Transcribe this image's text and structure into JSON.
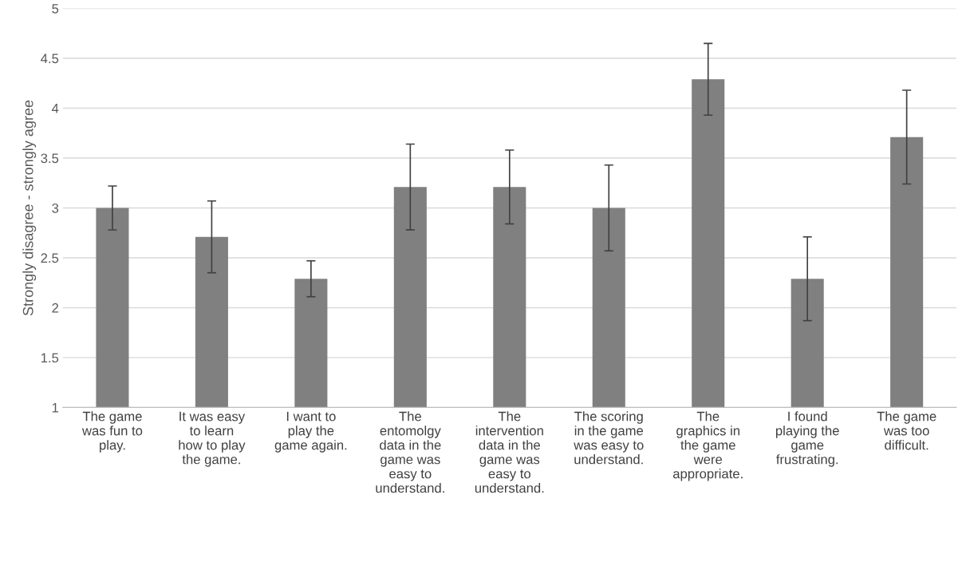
{
  "chart_data": {
    "type": "bar",
    "ylabel": "Strongly disagree - strongly agree",
    "categories": [
      "The game\nwas fun to\nplay.",
      "It was easy\nto learn\nhow to play\nthe game.",
      "I want to\nplay the\ngame again.",
      "The\nentomolgy\ndata in the\ngame was\neasy to\nunderstand.",
      "The\nintervention\ndata in the\ngame was\neasy to\nunderstand.",
      "The scoring\nin the game\nwas easy to\nunderstand.",
      "The\ngraphics in\nthe game\nwere\nappropriate.",
      "I found\nplaying the\ngame\nfrustrating.",
      "The game\nwas too\ndifficult."
    ],
    "values": [
      3.0,
      2.71,
      2.29,
      3.21,
      3.21,
      3.0,
      4.29,
      2.29,
      3.71
    ],
    "errors": [
      0.22,
      0.36,
      0.18,
      0.43,
      0.37,
      0.43,
      0.36,
      0.42,
      0.47
    ],
    "color": "#808080",
    "ylim": [
      1,
      5
    ],
    "yticks": [
      1,
      1.5,
      2,
      2.5,
      3,
      3.5,
      4,
      4.5,
      5
    ],
    "grid": "y",
    "legend": false
  }
}
